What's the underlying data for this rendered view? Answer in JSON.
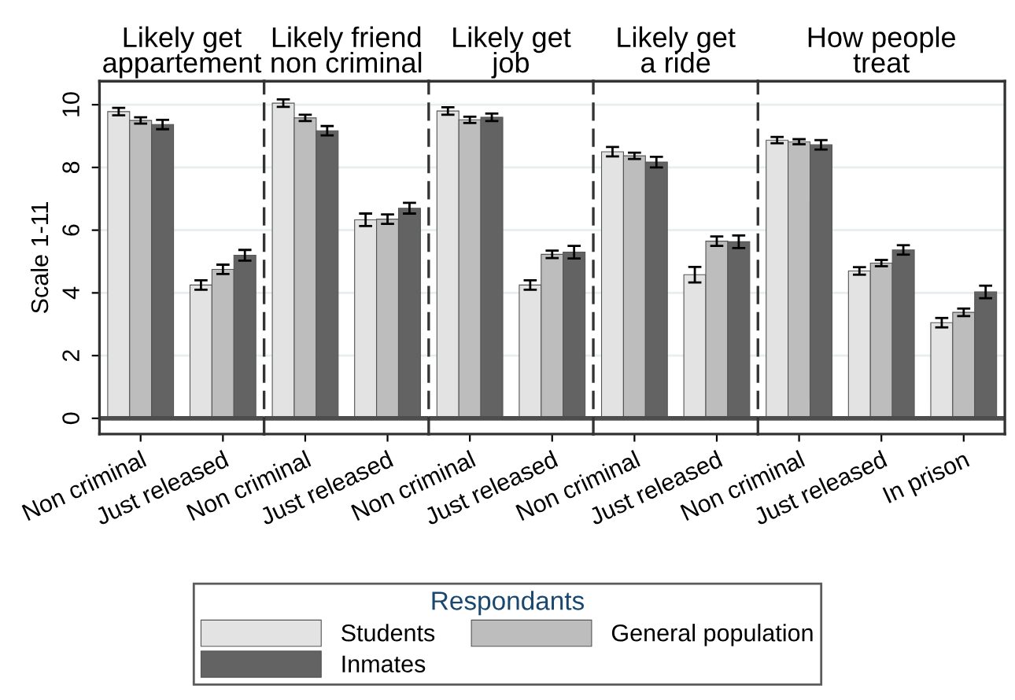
{
  "chart_data": [
    {
      "type": "bar",
      "title": "Likely get\nappartement",
      "ylabel": "Scale 1-11",
      "legend_title": "Respondants",
      "legend": "bottom",
      "categories": [
        "Non criminal",
        "Just released"
      ],
      "ylim": [
        -0.5,
        10.75
      ],
      "yticks": [
        0,
        2,
        4,
        6,
        8,
        10
      ],
      "grid": "y",
      "ref_lines": [
        {
          "axis": "y",
          "value": 0,
          "color": "#4d4d4d"
        }
      ],
      "series": [
        {
          "name": "Students",
          "color": "#e3e3e3",
          "values": [
            9.78,
            4.25
          ],
          "errors": [
            0.12,
            0.15
          ]
        },
        {
          "name": "General population",
          "color": "#bdbdbd",
          "values": [
            9.5,
            4.75
          ],
          "errors": [
            0.1,
            0.15
          ]
        },
        {
          "name": "Inmates",
          "color": "#636363",
          "values": [
            9.37,
            5.2
          ],
          "errors": [
            0.15,
            0.17
          ]
        }
      ]
    },
    {
      "type": "bar",
      "title": "Likely friend\nnon criminal",
      "categories": [
        "Non criminal",
        "Just released"
      ],
      "ylim": [
        -0.5,
        10.75
      ],
      "yticks": [
        0,
        2,
        4,
        6,
        8,
        10
      ],
      "grid": "y",
      "tick_labels": "x",
      "ref_lines": [
        {
          "axis": "y",
          "value": 0,
          "color": "#4d4d4d"
        }
      ],
      "series": [
        {
          "color": "#e3e3e3",
          "values": [
            10.05,
            6.33
          ],
          "errors": [
            0.12,
            0.2
          ]
        },
        {
          "color": "#bdbdbd",
          "values": [
            9.58,
            6.35
          ],
          "errors": [
            0.1,
            0.15
          ]
        },
        {
          "color": "#636363",
          "values": [
            9.17,
            6.7
          ],
          "errors": [
            0.15,
            0.17
          ]
        }
      ]
    },
    {
      "type": "bar",
      "title": "Likely get\njob",
      "categories": [
        "Non criminal",
        "Just released"
      ],
      "ylim": [
        -0.5,
        10.75
      ],
      "yticks": [
        0,
        2,
        4,
        6,
        8,
        10
      ],
      "grid": "y",
      "tick_labels": "x",
      "ref_lines": [
        {
          "axis": "y",
          "value": 0,
          "color": "#4d4d4d"
        }
      ],
      "series": [
        {
          "color": "#e3e3e3",
          "values": [
            9.8,
            4.25
          ],
          "errors": [
            0.12,
            0.15
          ]
        },
        {
          "color": "#bdbdbd",
          "values": [
            9.52,
            5.23
          ],
          "errors": [
            0.1,
            0.12
          ]
        },
        {
          "color": "#636363",
          "values": [
            9.6,
            5.3
          ],
          "errors": [
            0.12,
            0.2
          ]
        }
      ]
    },
    {
      "type": "bar",
      "title": "Likely get\na ride",
      "categories": [
        "Non criminal",
        "Just released"
      ],
      "ylim": [
        -0.5,
        10.75
      ],
      "yticks": [
        0,
        2,
        4,
        6,
        8,
        10
      ],
      "grid": "y",
      "tick_labels": "x",
      "ref_lines": [
        {
          "axis": "y",
          "value": 0,
          "color": "#4d4d4d"
        }
      ],
      "series": [
        {
          "color": "#e3e3e3",
          "values": [
            8.5,
            4.58
          ],
          "errors": [
            0.15,
            0.25
          ]
        },
        {
          "color": "#bdbdbd",
          "values": [
            8.37,
            5.65
          ],
          "errors": [
            0.1,
            0.15
          ]
        },
        {
          "color": "#636363",
          "values": [
            8.17,
            5.63
          ],
          "errors": [
            0.17,
            0.2
          ]
        }
      ]
    },
    {
      "type": "bar",
      "title": "How people\ntreat",
      "categories": [
        "Non criminal",
        "Just released",
        "In prison"
      ],
      "ylim": [
        -0.5,
        10.75
      ],
      "yticks": [
        0,
        2,
        4,
        6,
        8,
        10
      ],
      "grid": "y",
      "tick_labels": "x",
      "ref_lines": [
        {
          "axis": "y",
          "value": 0,
          "color": "#4d4d4d"
        }
      ],
      "series": [
        {
          "color": "#e3e3e3",
          "values": [
            8.87,
            4.7,
            3.05
          ],
          "errors": [
            0.1,
            0.12,
            0.15
          ]
        },
        {
          "color": "#bdbdbd",
          "values": [
            8.82,
            4.95,
            3.38
          ],
          "errors": [
            0.08,
            0.1,
            0.12
          ]
        },
        {
          "color": "#636363",
          "values": [
            8.72,
            5.37,
            4.03
          ],
          "errors": [
            0.15,
            0.15,
            0.2
          ]
        }
      ]
    }
  ]
}
